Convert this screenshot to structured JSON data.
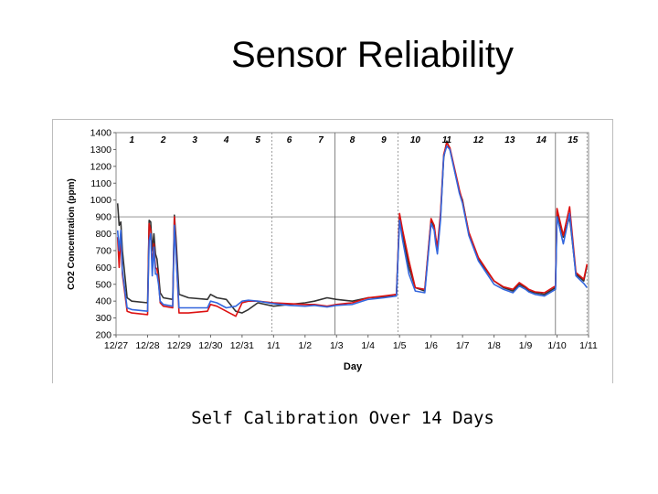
{
  "slide": {
    "title": "Sensor Reliability",
    "caption": "Self Calibration Over 14 Days"
  },
  "chart_data": {
    "type": "line",
    "xlabel": "Day",
    "ylabel": "CO2 Concentration (ppm)",
    "ylim": [
      200,
      1400
    ],
    "xlim": [
      0,
      15
    ],
    "yticks": [
      200,
      300,
      400,
      500,
      600,
      700,
      800,
      900,
      1000,
      1100,
      1200,
      1300,
      1400
    ],
    "xticks": [
      "12/27",
      "12/28",
      "12/29",
      "12/30",
      "12/31",
      "1/1",
      "1/2",
      "1/3",
      "1/4",
      "1/5",
      "1/6",
      "1/7",
      "1/8",
      "1/9",
      "1/10",
      "1/11"
    ],
    "day_labels": [
      "1",
      "2",
      "3",
      "4",
      "5",
      "6",
      "7",
      "8",
      "9",
      "10",
      "11",
      "12",
      "13",
      "14",
      "15"
    ],
    "grid": {
      "horizontal": [
        900
      ],
      "vertical_solid": [
        6.95,
        13.95
      ],
      "vertical_dashed": [
        4.95,
        8.95,
        14.95
      ]
    },
    "legend": "none",
    "series": [
      {
        "color": "#333333",
        "x": [
          0.05,
          0.1,
          0.15,
          0.2,
          0.35,
          0.5,
          1.0,
          1.05,
          1.1,
          1.15,
          1.2,
          1.25,
          1.3,
          1.35,
          1.4,
          1.5,
          1.8,
          1.85,
          1.9,
          2.0,
          2.3,
          2.9,
          3.0,
          3.2,
          3.5,
          3.8,
          4.0,
          4.2,
          4.5,
          5.0,
          5.5,
          6.0,
          6.3,
          6.7,
          7.0,
          7.5,
          8.0,
          8.5,
          8.9,
          9.0,
          9.1,
          9.3,
          9.5,
          9.8,
          10.0,
          10.1,
          10.15,
          10.2,
          10.3,
          10.4,
          10.5,
          10.6,
          10.9,
          11.0,
          11.2,
          11.5,
          12.0,
          12.3,
          12.6,
          12.8,
          13.0,
          13.1,
          13.3,
          13.6,
          13.95,
          14.0,
          14.2,
          14.4,
          14.6,
          14.85,
          14.95
        ],
        "y": [
          980,
          850,
          870,
          700,
          420,
          400,
          390,
          880,
          870,
          700,
          800,
          680,
          650,
          560,
          450,
          420,
          410,
          910,
          780,
          440,
          420,
          410,
          440,
          420,
          410,
          340,
          330,
          350,
          390,
          370,
          380,
          390,
          400,
          420,
          410,
          400,
          420,
          425,
          440,
          900,
          800,
          600,
          480,
          460,
          880,
          840,
          760,
          700,
          900,
          1250,
          1350,
          1300,
          1050,
          1000,
          800,
          650,
          520,
          480,
          460,
          500,
          480,
          460,
          450,
          440,
          480,
          930,
          780,
          900,
          560,
          520,
          610
        ]
      },
      {
        "color": "#dd1111",
        "x": [
          0.05,
          0.1,
          0.15,
          0.2,
          0.35,
          0.5,
          1.0,
          1.05,
          1.1,
          1.15,
          1.2,
          1.25,
          1.3,
          1.35,
          1.4,
          1.5,
          1.8,
          1.85,
          1.9,
          2.0,
          2.3,
          2.9,
          3.0,
          3.2,
          3.5,
          3.8,
          4.0,
          4.2,
          4.5,
          5.0,
          5.5,
          6.0,
          6.3,
          6.7,
          7.0,
          7.5,
          8.0,
          8.5,
          8.9,
          9.0,
          9.1,
          9.3,
          9.5,
          9.8,
          10.0,
          10.1,
          10.15,
          10.2,
          10.3,
          10.4,
          10.5,
          10.6,
          10.9,
          11.0,
          11.2,
          11.5,
          12.0,
          12.3,
          12.6,
          12.8,
          13.0,
          13.1,
          13.3,
          13.6,
          13.95,
          14.0,
          14.2,
          14.4,
          14.6,
          14.85,
          14.95
        ],
        "y": [
          780,
          600,
          800,
          560,
          340,
          330,
          320,
          860,
          820,
          600,
          740,
          600,
          590,
          520,
          390,
          370,
          360,
          900,
          700,
          330,
          330,
          340,
          380,
          370,
          340,
          310,
          390,
          400,
          400,
          390,
          385,
          380,
          380,
          370,
          380,
          390,
          420,
          430,
          440,
          920,
          820,
          640,
          480,
          470,
          890,
          850,
          780,
          720,
          920,
          1270,
          1340,
          1310,
          1060,
          990,
          810,
          660,
          520,
          485,
          470,
          510,
          485,
          470,
          455,
          450,
          490,
          950,
          790,
          960,
          570,
          530,
          620
        ]
      },
      {
        "color": "#3366dd",
        "x": [
          0.05,
          0.1,
          0.15,
          0.2,
          0.35,
          0.5,
          1.0,
          1.05,
          1.1,
          1.15,
          1.2,
          1.25,
          1.3,
          1.35,
          1.4,
          1.5,
          1.8,
          1.85,
          1.9,
          2.0,
          2.3,
          2.9,
          3.0,
          3.2,
          3.5,
          3.8,
          4.0,
          4.2,
          4.5,
          5.0,
          5.5,
          6.0,
          6.3,
          6.7,
          7.0,
          7.5,
          8.0,
          8.5,
          8.9,
          9.0,
          9.1,
          9.3,
          9.5,
          9.8,
          10.0,
          10.1,
          10.15,
          10.2,
          10.3,
          10.4,
          10.5,
          10.6,
          10.9,
          11.0,
          11.2,
          11.5,
          12.0,
          12.3,
          12.6,
          12.8,
          13.0,
          13.1,
          13.3,
          13.6,
          13.95,
          14.0,
          14.2,
          14.4,
          14.6,
          14.85,
          14.95
        ],
        "y": [
          820,
          700,
          820,
          580,
          360,
          350,
          340,
          760,
          800,
          550,
          720,
          560,
          560,
          500,
          400,
          380,
          370,
          850,
          680,
          360,
          360,
          360,
          400,
          390,
          360,
          370,
          400,
          405,
          400,
          385,
          375,
          370,
          375,
          365,
          375,
          380,
          410,
          420,
          430,
          880,
          760,
          560,
          460,
          450,
          860,
          820,
          740,
          680,
          880,
          1260,
          1320,
          1300,
          1040,
          980,
          790,
          640,
          500,
          470,
          450,
          490,
          470,
          455,
          440,
          430,
          470,
          900,
          740,
          920,
          550,
          505,
          480
        ]
      }
    ]
  }
}
